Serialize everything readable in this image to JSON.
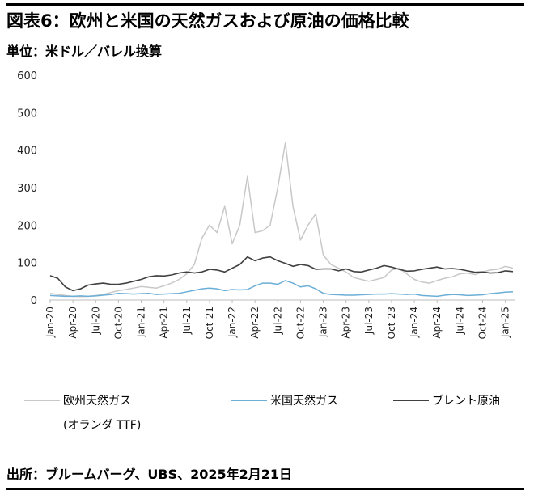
{
  "title": "図表6：欧州と米国の天然ガスおよび原油の価格比較",
  "unit": "単位：米ドル／バレル換算",
  "source": "出所：ブルームバーグ、UBS、2025年2月21日",
  "chart_data": {
    "type": "line",
    "ylim": [
      0,
      600
    ],
    "y_ticks": [
      "600",
      "500",
      "400",
      "300",
      "200",
      "100",
      "0"
    ],
    "x_ticks": [
      "Jan-20",
      "Apr-20",
      "Jul-20",
      "Oct-20",
      "Jan-21",
      "Apr-21",
      "Jul-21",
      "Oct-21",
      "Jan-22",
      "Apr-22",
      "Jul-22",
      "Oct-22",
      "Jan-23",
      "Apr-23",
      "Jul-23",
      "Oct-23",
      "Jan-24",
      "Apr-24",
      "Jul-24",
      "Oct-24",
      "Jan-25"
    ],
    "x": [
      "Jan-20",
      "Feb-20",
      "Mar-20",
      "Apr-20",
      "May-20",
      "Jun-20",
      "Jul-20",
      "Aug-20",
      "Sep-20",
      "Oct-20",
      "Nov-20",
      "Dec-20",
      "Jan-21",
      "Feb-21",
      "Mar-21",
      "Apr-21",
      "May-21",
      "Jun-21",
      "Jul-21",
      "Aug-21",
      "Sep-21",
      "Oct-21",
      "Nov-21",
      "Dec-21",
      "Jan-22",
      "Feb-22",
      "Mar-22",
      "Apr-22",
      "May-22",
      "Jun-22",
      "Jul-22",
      "Aug-22",
      "Sep-22",
      "Oct-22",
      "Nov-22",
      "Dec-22",
      "Jan-23",
      "Feb-23",
      "Mar-23",
      "Apr-23",
      "May-23",
      "Jun-23",
      "Jul-23",
      "Aug-23",
      "Sep-23",
      "Oct-23",
      "Nov-23",
      "Dec-23",
      "Jan-24",
      "Feb-24",
      "Mar-24",
      "Apr-24",
      "May-24",
      "Jun-24",
      "Jul-24",
      "Aug-24",
      "Sep-24",
      "Oct-24",
      "Nov-24",
      "Dec-24",
      "Jan-25",
      "Feb-25"
    ],
    "grid": false,
    "legend_position": "bottom",
    "series": [
      {
        "name": "欧州天然ガス",
        "name_line2": "(オランダ TTF)",
        "color": "#c8c8c8",
        "values": [
          18,
          15,
          12,
          10,
          9,
          10,
          12,
          15,
          20,
          25,
          28,
          32,
          36,
          34,
          32,
          38,
          45,
          55,
          70,
          95,
          165,
          200,
          180,
          250,
          150,
          200,
          330,
          180,
          185,
          200,
          300,
          420,
          250,
          160,
          200,
          230,
          120,
          95,
          85,
          75,
          60,
          55,
          50,
          55,
          60,
          80,
          85,
          70,
          55,
          48,
          45,
          52,
          58,
          62,
          70,
          72,
          68,
          75,
          80,
          82,
          90,
          85
        ]
      },
      {
        "name": "米国天然ガス",
        "color": "#6baed6",
        "values": [
          12,
          11,
          10,
          10,
          11,
          10,
          11,
          13,
          15,
          18,
          17,
          16,
          17,
          18,
          15,
          16,
          17,
          18,
          22,
          26,
          30,
          32,
          30,
          25,
          28,
          27,
          28,
          38,
          45,
          45,
          42,
          52,
          45,
          35,
          38,
          30,
          18,
          15,
          14,
          13,
          13,
          14,
          15,
          16,
          16,
          17,
          16,
          15,
          16,
          12,
          11,
          10,
          13,
          15,
          14,
          12,
          13,
          14,
          17,
          19,
          21,
          22
        ]
      },
      {
        "name": "ブレント原油",
        "color": "#404040",
        "values": [
          65,
          58,
          35,
          25,
          30,
          40,
          43,
          45,
          42,
          42,
          45,
          50,
          55,
          62,
          65,
          64,
          67,
          72,
          75,
          72,
          75,
          82,
          80,
          75,
          85,
          95,
          115,
          105,
          112,
          115,
          105,
          98,
          90,
          95,
          92,
          82,
          83,
          83,
          78,
          83,
          76,
          75,
          80,
          85,
          92,
          88,
          82,
          77,
          78,
          82,
          85,
          88,
          83,
          84,
          82,
          78,
          74,
          75,
          72,
          73,
          78,
          76
        ]
      }
    ]
  }
}
